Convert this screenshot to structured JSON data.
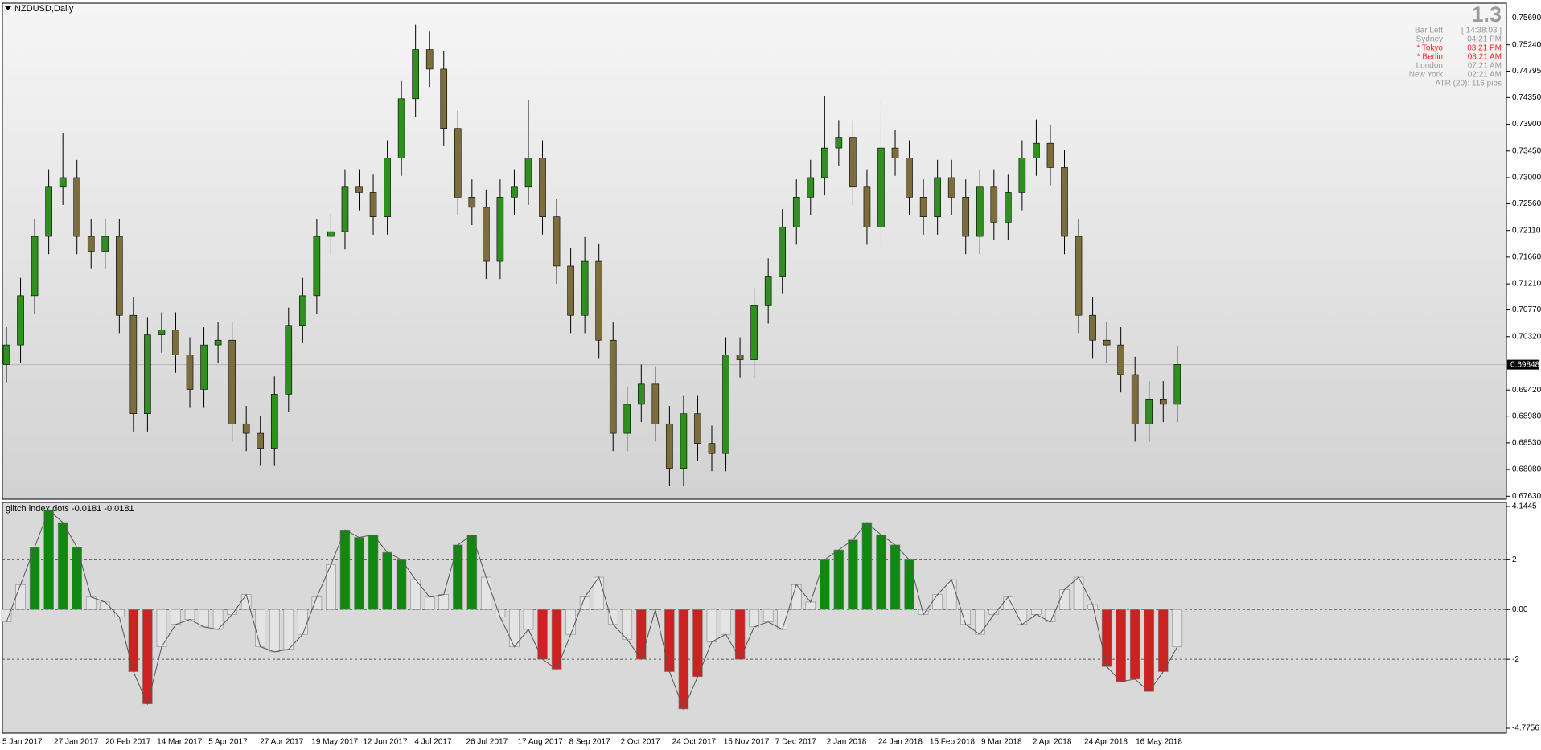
{
  "chart_data": [
    {
      "type": "candlestick",
      "title": "NZDUSD,Daily",
      "open": [
        0.6985,
        0.7018,
        0.7101,
        0.7201,
        0.7284,
        0.73,
        0.7201,
        0.7176,
        0.7201,
        0.7068,
        0.6902,
        0.7035,
        0.7043,
        0.7001,
        0.6943,
        0.7018,
        0.7026,
        0.6885,
        0.6869,
        0.6844,
        0.6935,
        0.7051,
        0.7101,
        0.7201,
        0.7209,
        0.7284,
        0.7275,
        0.7234,
        0.7333,
        0.7433,
        0.7516,
        0.7483,
        0.7383,
        0.7267,
        0.725,
        0.7159,
        0.7267,
        0.7284,
        0.7333,
        0.7234,
        0.7151,
        0.7068,
        0.7159,
        0.7026,
        0.6869,
        0.6918,
        0.6952,
        0.6885,
        0.681,
        0.6902,
        0.6852,
        0.6835,
        0.7001,
        0.6993,
        0.7084,
        0.7134,
        0.7217,
        0.7267,
        0.73,
        0.735,
        0.7367,
        0.7284,
        0.7217,
        0.735,
        0.7333,
        0.7267,
        0.7234,
        0.73,
        0.7267,
        0.7201,
        0.7284,
        0.7225,
        0.7275,
        0.7333,
        0.7358,
        0.7317,
        0.7201,
        0.7068,
        0.7026,
        0.7018,
        0.6968,
        0.6885,
        0.6927,
        0.6918
      ],
      "high": [
        0.7048,
        0.7131,
        0.7231,
        0.7314,
        0.7375,
        0.733,
        0.7231,
        0.7231,
        0.7231,
        0.7098,
        0.7065,
        0.7073,
        0.7073,
        0.7031,
        0.7048,
        0.7056,
        0.7056,
        0.6915,
        0.6899,
        0.6965,
        0.7081,
        0.7131,
        0.7231,
        0.7239,
        0.7314,
        0.7314,
        0.7305,
        0.7363,
        0.7463,
        0.7558,
        0.7546,
        0.7513,
        0.7413,
        0.7297,
        0.728,
        0.7297,
        0.7314,
        0.743,
        0.7363,
        0.7264,
        0.7181,
        0.72,
        0.7189,
        0.7056,
        0.6948,
        0.6985,
        0.6982,
        0.6915,
        0.6932,
        0.6932,
        0.6882,
        0.7031,
        0.7031,
        0.7114,
        0.7164,
        0.7247,
        0.7297,
        0.733,
        0.7437,
        0.7397,
        0.7397,
        0.7314,
        0.7433,
        0.738,
        0.7363,
        0.7297,
        0.733,
        0.733,
        0.7297,
        0.7314,
        0.7314,
        0.7305,
        0.7363,
        0.7398,
        0.7388,
        0.7347,
        0.7231,
        0.7098,
        0.7056,
        0.7048,
        0.6998,
        0.6957,
        0.6957,
        0.7015
      ],
      "low": [
        0.6955,
        0.6988,
        0.7071,
        0.7171,
        0.7254,
        0.7171,
        0.7146,
        0.7146,
        0.7038,
        0.6872,
        0.6872,
        0.7005,
        0.6971,
        0.6913,
        0.6913,
        0.6988,
        0.6855,
        0.6839,
        0.6814,
        0.6814,
        0.6905,
        0.7021,
        0.7071,
        0.7171,
        0.7179,
        0.7245,
        0.7204,
        0.7204,
        0.7303,
        0.7403,
        0.7453,
        0.7353,
        0.7237,
        0.722,
        0.7129,
        0.7129,
        0.7237,
        0.7254,
        0.7204,
        0.7121,
        0.7038,
        0.7038,
        0.6996,
        0.6839,
        0.6839,
        0.6888,
        0.6855,
        0.678,
        0.678,
        0.6822,
        0.6805,
        0.6805,
        0.6963,
        0.6963,
        0.7054,
        0.7104,
        0.7187,
        0.7237,
        0.727,
        0.732,
        0.7254,
        0.7187,
        0.7187,
        0.7303,
        0.7237,
        0.7204,
        0.7204,
        0.7237,
        0.7171,
        0.7171,
        0.7195,
        0.7195,
        0.7245,
        0.7303,
        0.7287,
        0.7171,
        0.7038,
        0.6996,
        0.6988,
        0.6938,
        0.6855,
        0.6855,
        0.6888,
        0.6888
      ],
      "close": [
        0.7018,
        0.7101,
        0.7201,
        0.7284,
        0.73,
        0.7201,
        0.7176,
        0.7201,
        0.7068,
        0.6902,
        0.7035,
        0.7043,
        0.7001,
        0.6943,
        0.7018,
        0.7026,
        0.6885,
        0.6869,
        0.6844,
        0.6935,
        0.7051,
        0.7101,
        0.7201,
        0.7209,
        0.7284,
        0.7275,
        0.7234,
        0.7333,
        0.7433,
        0.7516,
        0.7483,
        0.7383,
        0.7267,
        0.725,
        0.7159,
        0.7267,
        0.7284,
        0.7333,
        0.7234,
        0.7151,
        0.7068,
        0.7159,
        0.7026,
        0.6869,
        0.6918,
        0.6952,
        0.6885,
        0.681,
        0.6902,
        0.6852,
        0.6835,
        0.7001,
        0.6993,
        0.7084,
        0.7134,
        0.7217,
        0.7267,
        0.73,
        0.735,
        0.7367,
        0.7284,
        0.7217,
        0.735,
        0.7333,
        0.7267,
        0.7234,
        0.73,
        0.7267,
        0.7201,
        0.7284,
        0.7225,
        0.7275,
        0.7333,
        0.7358,
        0.7317,
        0.7201,
        0.7068,
        0.7026,
        0.7018,
        0.6968,
        0.6885,
        0.6927,
        0.6918,
        0.6985
      ],
      "up_color": "#2f8f1f",
      "down_color": "#7b6d3c",
      "wick_color": "#000000",
      "x_labels": [
        "5 Jan 2017",
        "27 Jan 2017",
        "20 Feb 2017",
        "14 Mar 2017",
        "5 Apr 2017",
        "27 Apr 2017",
        "19 May 2017",
        "12 Jun 2017",
        "4 Jul 2017",
        "26 Jul 2017",
        "17 Aug 2017",
        "8 Sep 2017",
        "2 Oct 2017",
        "24 Oct 2017",
        "15 Nov 2017",
        "7 Dec 2017",
        "2 Jan 2018",
        "24 Jan 2018",
        "15 Feb 2018",
        "9 Mar 2018",
        "2 Apr 2018",
        "24 Apr 2018",
        "16 May 2018"
      ],
      "ylim": [
        0.6758,
        0.7594
      ],
      "yticks": [
        {
          "value": 0.7569,
          "label": "0.75690"
        },
        {
          "value": 0.7524,
          "label": "0.75240"
        },
        0.74795,
        {
          "value": 0.7435,
          "label": "0.74350"
        },
        {
          "value": 0.739,
          "label": "0.73900"
        },
        {
          "value": 0.7345,
          "label": "0.73450"
        },
        {
          "value": 0.73,
          "label": "0.73000"
        },
        {
          "value": 0.7256,
          "label": "0.72560"
        },
        {
          "value": 0.7211,
          "label": "0.72110"
        },
        {
          "value": 0.7166,
          "label": "0.71660"
        },
        {
          "value": 0.7121,
          "label": "0.71210"
        },
        {
          "value": 0.7077,
          "label": "0.70770"
        },
        {
          "value": 0.7032,
          "label": "0.70320"
        },
        {
          "value": 0.6942,
          "label": "0.69420"
        },
        {
          "value": 0.6898,
          "label": "0.68980"
        },
        {
          "value": 0.6853,
          "label": "0.68530"
        },
        {
          "value": 0.6808,
          "label": "0.68080"
        },
        {
          "value": 0.6763,
          "label": "0.67630"
        }
      ],
      "last_price": 0.69848
    },
    {
      "type": "histogram",
      "title": "glitch index dots -0.0181 -0.0181",
      "values": [
        -0.5,
        1.0,
        2.5,
        4.0,
        3.5,
        2.5,
        0.5,
        0.3,
        -0.3,
        -2.5,
        -3.8,
        -1.5,
        -0.6,
        -0.4,
        -0.7,
        -0.8,
        -0.2,
        0.6,
        -1.5,
        -1.7,
        -1.6,
        -1.0,
        0.5,
        1.8,
        3.2,
        2.9,
        3.0,
        2.3,
        2.0,
        1.2,
        0.5,
        0.6,
        2.6,
        3.0,
        1.3,
        -0.3,
        -1.5,
        -0.8,
        -2.0,
        -2.4,
        -1.0,
        0.5,
        1.3,
        -0.6,
        -1.2,
        -2.0,
        0.0,
        -2.5,
        -4.0,
        -2.7,
        -1.3,
        -1.0,
        -2.0,
        -0.7,
        -0.5,
        -0.8,
        1.0,
        0.3,
        2.0,
        2.4,
        2.8,
        3.5,
        3.0,
        2.6,
        2.0,
        -0.2,
        0.6,
        1.2,
        -0.6,
        -1.0,
        -0.2,
        0.5,
        -0.6,
        -0.2,
        -0.5,
        0.8,
        1.3,
        0.2,
        -2.3,
        -2.9,
        -2.8,
        -3.3,
        -2.5,
        -1.5
      ],
      "up_color": "#118811",
      "down_color": "#cc2222",
      "neutral_color": "#e4e4e4",
      "ylim": [
        -4.7756,
        4.1445
      ],
      "yticks": [
        4.1445,
        2,
        {
          "value": 0,
          "label": "0.00"
        },
        -2,
        -4.7756
      ]
    }
  ],
  "info": {
    "big": "1.3",
    "rows": [
      {
        "label": "Bar Left",
        "value": "[ 14:38:03 ]",
        "color": "#9a9a9a"
      },
      {
        "label": "Sydney",
        "value": "04:21 PM",
        "color": "#9a9a9a"
      },
      {
        "label": "* Tokyo",
        "value": "03:21 PM",
        "color": "#ff2020"
      },
      {
        "label": "* Berlin",
        "value": "08:21 AM",
        "color": "#ff2020"
      },
      {
        "label": "London",
        "value": "07:21 AM",
        "color": "#9a9a9a"
      },
      {
        "label": "New York",
        "value": "02:21 AM",
        "color": "#9a9a9a"
      },
      {
        "label": "ATR (20): 116 pips",
        "color": "#9a9a9a"
      }
    ]
  }
}
